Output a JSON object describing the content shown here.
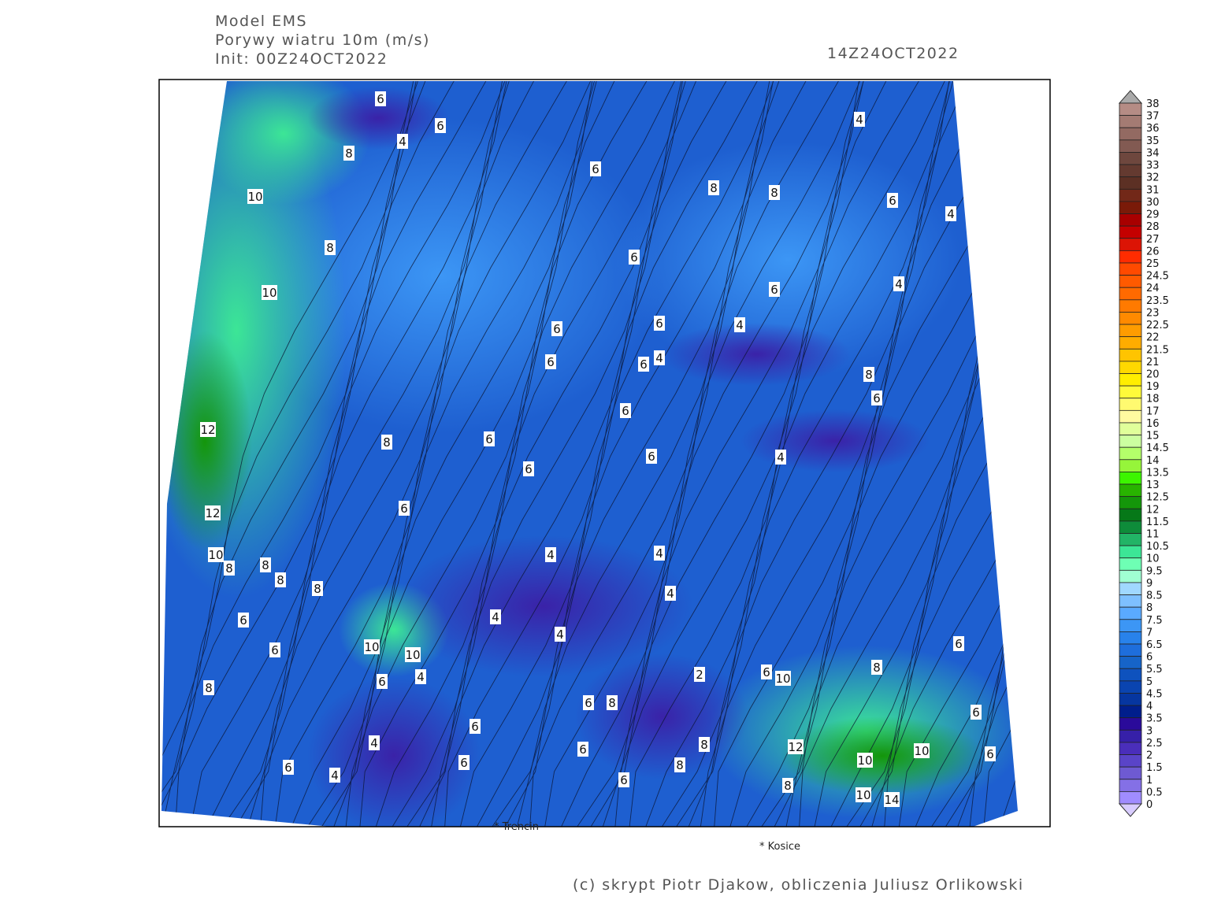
{
  "header": {
    "model": "Model EMS",
    "parameter": "Porywy wiatru 10m (m/s)",
    "init": "Init: 00Z24OCT2022",
    "valid_time": "14Z24OCT2022"
  },
  "credit": "(c) skrypt Piotr Djakow, obliczenia Juliusz Orlikowski",
  "cities_outside": [
    {
      "name": "* Trencin"
    },
    {
      "name": "* Kosice"
    }
  ],
  "map": {
    "field": "wind gust 10m",
    "dominant_color": "#1e5fd0",
    "contour_labels": [
      "6",
      "6",
      "4",
      "8",
      "10",
      "8",
      "10",
      "12",
      "12",
      "10",
      "8",
      "8",
      "8",
      "8",
      "6",
      "6",
      "8",
      "10",
      "10",
      "6",
      "4",
      "4",
      "4",
      "4",
      "6",
      "6",
      "6",
      "6",
      "6",
      "4",
      "4",
      "6",
      "8",
      "6",
      "6",
      "6",
      "6",
      "6",
      "4",
      "4",
      "4",
      "4",
      "4",
      "2",
      "6",
      "10",
      "8",
      "6",
      "12",
      "10",
      "10",
      "10",
      "14",
      "8",
      "8",
      "4",
      "6",
      "4",
      "6",
      "6",
      "6",
      "6",
      "8",
      "6",
      "8",
      "6",
      "6",
      "8",
      "6",
      "4",
      "8",
      "6",
      "8",
      "6"
    ]
  },
  "colorbar": {
    "labels": [
      "38",
      "37",
      "36",
      "35",
      "34",
      "33",
      "32",
      "31",
      "30",
      "29",
      "28",
      "27",
      "26",
      "25",
      "24.5",
      "24",
      "23.5",
      "23",
      "22.5",
      "22",
      "21.5",
      "21",
      "20",
      "19",
      "18",
      "17",
      "16",
      "15",
      "14.5",
      "14",
      "13.5",
      "13",
      "12.5",
      "12",
      "11.5",
      "11",
      "10.5",
      "10",
      "9.5",
      "9",
      "8.5",
      "8",
      "7.5",
      "7",
      "6.5",
      "6",
      "5.5",
      "5",
      "4.5",
      "4",
      "3.5",
      "3",
      "2.5",
      "2",
      "1.5",
      "1",
      "0.5",
      "0"
    ],
    "colors": [
      "#b58c85",
      "#a47b73",
      "#936a62",
      "#825a52",
      "#6e473e",
      "#643a30",
      "#5c3024",
      "#722818",
      "#7a1a08",
      "#a80000",
      "#c40000",
      "#dc1405",
      "#ff2c00",
      "#ff4a00",
      "#ff5a00",
      "#ff6a00",
      "#ff7a00",
      "#ff8a00",
      "#ff9c00",
      "#ffac00",
      "#ffc400",
      "#ffd800",
      "#ffee00",
      "#fffa3a",
      "#fffa70",
      "#fffaa0",
      "#e0ff9a",
      "#ccffa0",
      "#b4ff6a",
      "#96f53a",
      "#3cf500",
      "#28b400",
      "#14960a",
      "#067818",
      "#0e8c3a",
      "#22b466",
      "#3ce696",
      "#6effb4",
      "#a0ffd2",
      "#a0d8ff",
      "#7ec0ff",
      "#5aaaff",
      "#3c96f5",
      "#2882eb",
      "#1e6edc",
      "#1664c8",
      "#0e52be",
      "#0a44b0",
      "#0636a0",
      "#001e8c",
      "#2a0a9a",
      "#3620a8",
      "#4a2eba",
      "#5a44c8",
      "#6e5ad2",
      "#8470e6",
      "#a08cff",
      "#c8b8ff"
    ],
    "over_color": "#aaaaaa",
    "under_color": "#d8ccff"
  }
}
